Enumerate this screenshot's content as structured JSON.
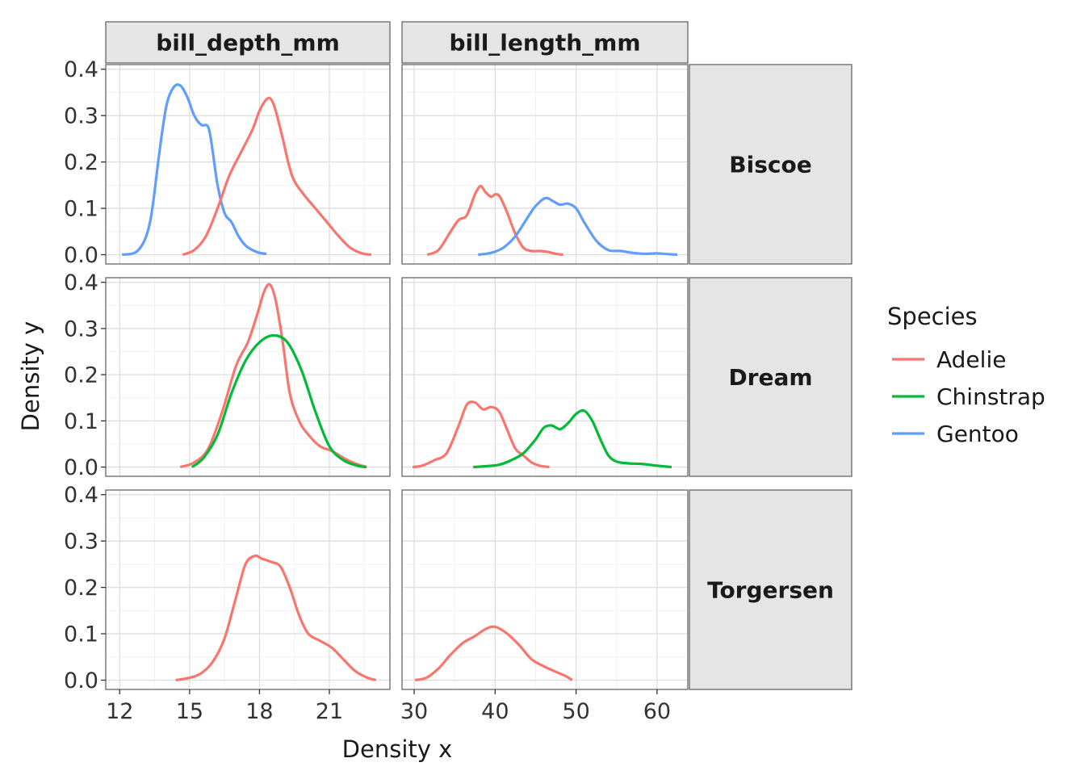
{
  "chart_data": {
    "type": "line",
    "xlabel": "Density x",
    "ylabel": "Density y",
    "facet_columns": [
      {
        "label": "bill_depth_mm",
        "xlim": [
          11.4,
          23.6
        ],
        "x_ticks": [
          12,
          15,
          18,
          21
        ],
        "x_tick_labels": [
          "12",
          "15",
          "18",
          "21"
        ]
      },
      {
        "label": "bill_length_mm",
        "xlim": [
          28.5,
          63.8
        ],
        "x_ticks": [
          30,
          40,
          50,
          60
        ],
        "x_tick_labels": [
          "30",
          "40",
          "50",
          "60"
        ]
      }
    ],
    "facet_rows": [
      {
        "label": "Biscoe"
      },
      {
        "label": "Dream"
      },
      {
        "label": "Torgersen"
      }
    ],
    "ylim": [
      -0.02,
      0.41
    ],
    "y_ticks": [
      0.0,
      0.1,
      0.2,
      0.3,
      0.4
    ],
    "y_tick_labels": [
      "0.0",
      "0.1",
      "0.2",
      "0.3",
      "0.4"
    ],
    "grid": true,
    "legend": {
      "title": "Species",
      "position": "right",
      "entries": [
        {
          "name": "Adelie",
          "color": "#F8766D"
        },
        {
          "name": "Chinstrap",
          "color": "#00BA38"
        },
        {
          "name": "Gentoo",
          "color": "#619CFF"
        }
      ]
    },
    "panels": [
      {
        "row": 0,
        "col": 0,
        "series": [
          {
            "species": "Gentoo",
            "x": [
              12.1,
              12.8,
              13.3,
              13.7,
              14.0,
              14.3,
              14.6,
              14.9,
              15.2,
              15.5,
              15.8,
              16.0,
              16.2,
              16.5,
              16.8,
              17.1,
              17.4,
              17.7,
              18.0,
              18.3
            ],
            "y": [
              0.0,
              0.01,
              0.07,
              0.22,
              0.32,
              0.36,
              0.365,
              0.34,
              0.3,
              0.28,
              0.275,
              0.22,
              0.15,
              0.09,
              0.07,
              0.04,
              0.02,
              0.01,
              0.004,
              0.002
            ]
          },
          {
            "species": "Adelie",
            "x": [
              14.7,
              15.2,
              15.7,
              16.2,
              16.7,
              17.2,
              17.7,
              18.0,
              18.3,
              18.5,
              18.7,
              19.0,
              19.4,
              19.9,
              20.4,
              20.9,
              21.4,
              21.9,
              22.4,
              22.8
            ],
            "y": [
              0.0,
              0.01,
              0.04,
              0.1,
              0.17,
              0.22,
              0.27,
              0.31,
              0.335,
              0.335,
              0.31,
              0.25,
              0.17,
              0.13,
              0.1,
              0.07,
              0.04,
              0.015,
              0.003,
              0.0
            ]
          }
        ]
      },
      {
        "row": 0,
        "col": 1,
        "series": [
          {
            "species": "Adelie",
            "x": [
              31.6,
              33.0,
              34.5,
              35.5,
              36.5,
              37.5,
              38.2,
              38.8,
              39.5,
              40.0,
              40.6,
              41.5,
              42.5,
              43.5,
              44.5,
              45.5,
              46.5,
              47.5,
              48.4
            ],
            "y": [
              0.0,
              0.01,
              0.05,
              0.075,
              0.085,
              0.13,
              0.148,
              0.135,
              0.125,
              0.13,
              0.125,
              0.09,
              0.045,
              0.015,
              0.008,
              0.008,
              0.006,
              0.002,
              0.0
            ]
          },
          {
            "species": "Gentoo",
            "x": [
              37.9,
              39.5,
              41.0,
              42.5,
              44.0,
              45.0,
              46.2,
              47.2,
              48.0,
              49.0,
              50.0,
              51.0,
              52.5,
              54.0,
              55.5,
              57.0,
              58.5,
              60.0,
              61.5,
              62.5
            ],
            "y": [
              0.0,
              0.004,
              0.015,
              0.04,
              0.08,
              0.105,
              0.122,
              0.115,
              0.108,
              0.11,
              0.1,
              0.07,
              0.03,
              0.01,
              0.008,
              0.004,
              0.002,
              0.003,
              0.001,
              0.0
            ]
          }
        ]
      },
      {
        "row": 1,
        "col": 0,
        "series": [
          {
            "species": "Adelie",
            "x": [
              14.6,
              15.2,
              15.8,
              16.4,
              17.0,
              17.5,
              17.9,
              18.2,
              18.45,
              18.7,
              19.0,
              19.3,
              19.7,
              20.1,
              20.6,
              21.1,
              21.6,
              22.1,
              22.6
            ],
            "y": [
              0.0,
              0.01,
              0.04,
              0.12,
              0.22,
              0.27,
              0.33,
              0.38,
              0.395,
              0.36,
              0.27,
              0.16,
              0.1,
              0.07,
              0.045,
              0.035,
              0.02,
              0.008,
              0.0
            ]
          },
          {
            "species": "Chinstrap",
            "x": [
              15.1,
              15.6,
              16.2,
              16.8,
              17.4,
              18.0,
              18.6,
              19.2,
              19.8,
              20.4,
              21.0,
              21.6,
              22.2,
              22.6
            ],
            "y": [
              0.0,
              0.02,
              0.07,
              0.16,
              0.23,
              0.27,
              0.285,
              0.27,
              0.21,
              0.12,
              0.045,
              0.015,
              0.003,
              0.0
            ]
          }
        ]
      },
      {
        "row": 1,
        "col": 1,
        "series": [
          {
            "species": "Adelie",
            "x": [
              29.8,
              31.0,
              32.5,
              34.0,
              35.5,
              36.5,
              37.5,
              38.5,
              39.5,
              40.5,
              41.5,
              42.5,
              43.5,
              44.5,
              45.5,
              46.7
            ],
            "y": [
              0.0,
              0.003,
              0.015,
              0.03,
              0.09,
              0.135,
              0.14,
              0.125,
              0.13,
              0.12,
              0.08,
              0.04,
              0.025,
              0.01,
              0.003,
              0.0
            ]
          },
          {
            "species": "Chinstrap",
            "x": [
              37.3,
              39.0,
              40.5,
              42.0,
              43.5,
              45.0,
              46.0,
              47.0,
              48.0,
              49.0,
              50.0,
              51.0,
              52.0,
              53.0,
              54.0,
              55.0,
              56.5,
              58.0,
              60.0,
              61.8
            ],
            "y": [
              0.0,
              0.002,
              0.005,
              0.015,
              0.03,
              0.06,
              0.085,
              0.09,
              0.082,
              0.095,
              0.115,
              0.122,
              0.1,
              0.06,
              0.025,
              0.012,
              0.008,
              0.007,
              0.003,
              0.0
            ]
          }
        ]
      },
      {
        "row": 2,
        "col": 0,
        "series": [
          {
            "species": "Adelie",
            "x": [
              14.4,
              15.0,
              15.5,
              16.0,
              16.5,
              17.0,
              17.4,
              17.8,
              18.1,
              18.5,
              18.9,
              19.3,
              19.7,
              20.1,
              20.6,
              21.1,
              21.6,
              22.1,
              22.6,
              23.0
            ],
            "y": [
              0.0,
              0.005,
              0.015,
              0.04,
              0.09,
              0.18,
              0.25,
              0.268,
              0.262,
              0.255,
              0.245,
              0.2,
              0.14,
              0.1,
              0.085,
              0.07,
              0.045,
              0.02,
              0.006,
              0.0
            ]
          }
        ]
      },
      {
        "row": 2,
        "col": 1,
        "series": [
          {
            "species": "Adelie",
            "x": [
              30.1,
              31.5,
              33.0,
              34.5,
              36.0,
              37.5,
              38.8,
              40.0,
              41.5,
              43.0,
              44.5,
              46.0,
              47.5,
              48.8,
              49.5
            ],
            "y": [
              0.0,
              0.005,
              0.025,
              0.055,
              0.08,
              0.095,
              0.11,
              0.115,
              0.1,
              0.075,
              0.045,
              0.03,
              0.018,
              0.008,
              0.0
            ]
          }
        ]
      }
    ]
  }
}
